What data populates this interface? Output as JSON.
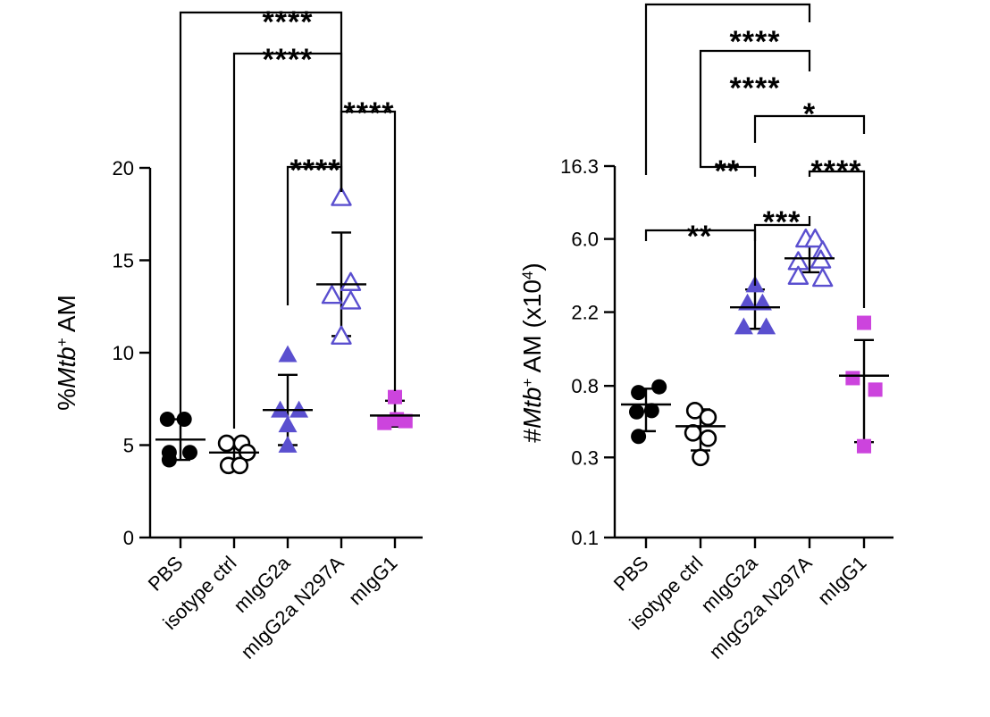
{
  "colors": {
    "PBS": "#000000",
    "isotype ctrl": "#000000",
    "mIgG2a": "#5a4fcf",
    "mIgG2a N297A": "#5a4fcf",
    "mIgG1": "#cc44dd"
  },
  "chart_data": [
    {
      "id": "left",
      "type": "scatter",
      "scale": "linear",
      "ylabel_prefix": "%",
      "ylabel_italic": "Mtb",
      "ylabel_sup": "+",
      "ylabel_suffix": " AM",
      "ylim": [
        0,
        20
      ],
      "yticks": [
        0,
        5,
        10,
        15,
        20
      ],
      "ytick_labels": [
        "0",
        "5",
        "10",
        "15",
        "20"
      ],
      "categories": [
        "PBS",
        "isotype ctrl",
        "mIgG2a",
        "mIgG2a N297A",
        "mIgG1"
      ],
      "groups": [
        {
          "name": "PBS",
          "marker": "circle-filled",
          "points": [
            [
              -0.35,
              6.4
            ],
            [
              0.1,
              6.4
            ],
            [
              -0.3,
              4.6
            ],
            [
              0.25,
              4.6
            ],
            [
              -0.3,
              4.2
            ]
          ],
          "mean": 5.3,
          "sd_low": 4.2,
          "sd_high": 6.4
        },
        {
          "name": "isotype ctrl",
          "marker": "circle-open",
          "points": [
            [
              -0.2,
              5.1
            ],
            [
              0.2,
              5.1
            ],
            [
              0.35,
              4.6
            ],
            [
              -0.15,
              3.9
            ],
            [
              0.15,
              3.9
            ]
          ],
          "mean": 4.6,
          "sd_low": 3.9,
          "sd_high": 5.3
        },
        {
          "name": "mIgG2a",
          "marker": "triangle-filled",
          "points": [
            [
              0,
              9.9
            ],
            [
              -0.2,
              6.9
            ],
            [
              0.3,
              6.9
            ],
            [
              0,
              6.1
            ],
            [
              0,
              5.0
            ]
          ],
          "mean": 6.9,
          "sd_low": 5.0,
          "sd_high": 8.8
        },
        {
          "name": "mIgG2a N297A",
          "marker": "triangle-open",
          "points": [
            [
              0,
              18.4
            ],
            [
              0.25,
              13.8
            ],
            [
              -0.25,
              13.1
            ],
            [
              0.25,
              12.8
            ],
            [
              0,
              10.9
            ]
          ],
          "mean": 13.7,
          "sd_low": 10.9,
          "sd_high": 16.5
        },
        {
          "name": "mIgG1",
          "marker": "square-filled",
          "points": [
            [
              0,
              7.6
            ],
            [
              -0.28,
              6.2
            ],
            [
              0.28,
              6.3
            ],
            [
              0.05,
              6.4
            ]
          ],
          "mean": 6.6,
          "sd_low": 6.0,
          "sd_high": 7.4
        }
      ],
      "comparisons": [
        {
          "from": "PBS",
          "to": "mIgG2a N297A",
          "label": "****"
        },
        {
          "from": "isotype ctrl",
          "to": "mIgG2a N297A",
          "label": "****"
        },
        {
          "from": "mIgG2a N297A",
          "to": "mIgG1",
          "label": "****"
        },
        {
          "from": "mIgG2a",
          "to": "mIgG2a N297A",
          "label": "****"
        }
      ]
    },
    {
      "id": "right",
      "type": "scatter",
      "scale": "log",
      "ylabel_prefix": "#",
      "ylabel_italic": "Mtb",
      "ylabel_sup": "+",
      "ylabel_suffix": " AM (x10",
      "ylabel_sup2": "4",
      "ylabel_end": ")",
      "ylim": [
        0.1,
        16.3
      ],
      "yticks": [
        0.1,
        0.3,
        0.8,
        2.2,
        6.0,
        16.3
      ],
      "ytick_labels": [
        "0.1",
        "0.3",
        "0.8",
        "2.2",
        "6.0",
        "16.3"
      ],
      "categories": [
        "PBS",
        "isotype ctrl",
        "mIgG2a",
        "mIgG2a N297A",
        "mIgG1"
      ],
      "groups": [
        {
          "name": "PBS",
          "marker": "circle-filled",
          "points": [
            [
              0.35,
              0.79
            ],
            [
              -0.2,
              0.73
            ],
            [
              -0.25,
              0.56
            ],
            [
              0.15,
              0.57
            ],
            [
              -0.2,
              0.4
            ]
          ],
          "mean": 0.62,
          "sd_low": 0.43,
          "sd_high": 0.77
        },
        {
          "name": "isotype ctrl",
          "marker": "circle-open",
          "points": [
            [
              -0.15,
              0.57
            ],
            [
              0.2,
              0.52
            ],
            [
              -0.2,
              0.42
            ],
            [
              0.2,
              0.39
            ],
            [
              0,
              0.3
            ]
          ],
          "mean": 0.46,
          "sd_low": 0.33,
          "sd_high": 0.58
        },
        {
          "name": "mIgG2a",
          "marker": "triangle-filled",
          "points": [
            [
              0,
              3.2
            ],
            [
              -0.2,
              2.5
            ],
            [
              0.2,
              2.5
            ],
            [
              -0.3,
              1.8
            ],
            [
              0.3,
              1.8
            ]
          ],
          "mean": 2.35,
          "sd_low": 1.75,
          "sd_high": 3.0
        },
        {
          "name": "mIgG2a N297A",
          "marker": "triangle-open",
          "points": [
            [
              -0.1,
              6.0
            ],
            [
              0.15,
              6.0
            ],
            [
              0.35,
              5.1
            ],
            [
              0.3,
              4.5
            ],
            [
              -0.3,
              4.4
            ],
            [
              -0.3,
              3.6
            ],
            [
              0.35,
              3.5
            ]
          ],
          "mean": 4.6,
          "sd_low": 3.8,
          "sd_high": 5.6
        },
        {
          "name": "mIgG1",
          "marker": "square-filled",
          "points": [
            [
              0,
              1.9
            ],
            [
              -0.3,
              0.89
            ],
            [
              0.3,
              0.76
            ],
            [
              0,
              0.35
            ]
          ],
          "mean": 0.92,
          "sd_low": 0.37,
          "sd_high": 1.5
        }
      ],
      "comparisons": [
        {
          "from": "PBS",
          "to": "mIgG2a N297A",
          "label": "****"
        },
        {
          "from": "isotype ctrl",
          "to": "mIgG2a N297A",
          "label": "****"
        },
        {
          "from": "mIgG2a",
          "to": "mIgG1",
          "label": "*"
        },
        {
          "from": "isotype ctrl",
          "to": "mIgG2a",
          "label": "**"
        },
        {
          "from": "mIgG2a N297A",
          "to": "mIgG1",
          "label": "****"
        },
        {
          "from": "mIgG2a",
          "to": "mIgG2a N297A",
          "label": "***"
        },
        {
          "from": "PBS",
          "to": "mIgG2a",
          "label": "**"
        }
      ]
    }
  ]
}
